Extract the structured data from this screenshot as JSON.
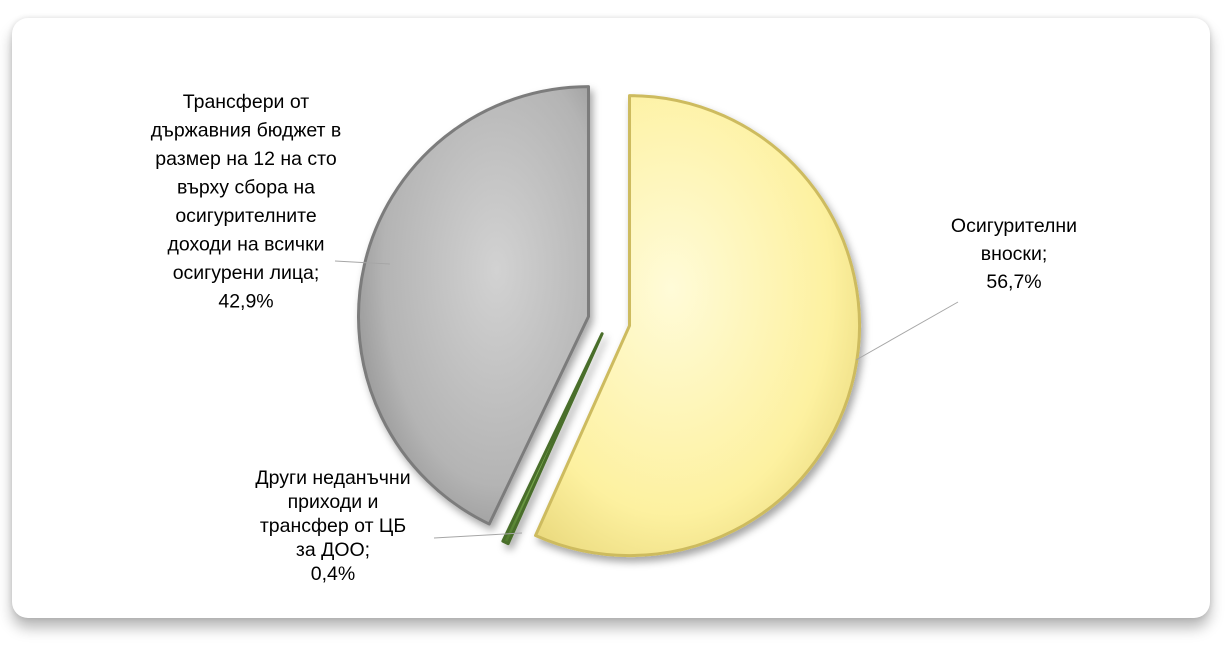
{
  "chart_data": {
    "type": "pie",
    "title": "",
    "exploded": true,
    "slices": [
      {
        "label_lines": [
          "Осигурителни",
          "вноски;",
          "56,7%"
        ],
        "value": 56.7,
        "color": "#fdf3a6"
      },
      {
        "label_lines": [
          "Други неданъчни",
          "приходи и",
          "трансфер от ЦБ",
          "за ДОО;",
          "0,4%"
        ],
        "value": 0.4,
        "color": "#70a040"
      },
      {
        "label_lines": [
          "Трансфери от",
          "държавния бюджет в",
          "размер на 12 на сто",
          "върху сбора на",
          "осигурителните",
          "доходи на всички",
          "осигурени лица;",
          "42,9%"
        ],
        "value": 42.9,
        "color": "#b8b8b8"
      }
    ]
  }
}
